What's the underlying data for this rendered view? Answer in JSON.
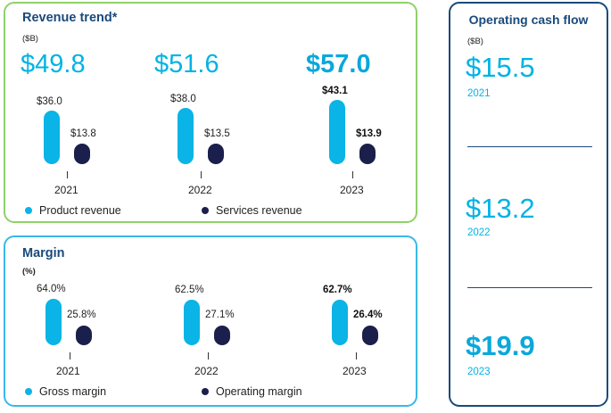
{
  "colors": {
    "primary_series": "#0ab4e6",
    "secondary_series": "#1b1f4b",
    "revenue_border": "#8fd16a",
    "margin_border": "#38b8e8",
    "cash_border": "#1a4a7a"
  },
  "chart_data": [
    {
      "type": "bar",
      "title": "Revenue trend*",
      "unit": "($B)",
      "categories": [
        "2021",
        "2022",
        "2023"
      ],
      "totals": [
        "$49.8",
        "$51.6",
        "$57.0"
      ],
      "series": [
        {
          "name": "Product revenue",
          "values": [
            36.0,
            38.0,
            43.1
          ],
          "labels": [
            "$36.0",
            "$38.0",
            "$43.1"
          ]
        },
        {
          "name": "Services revenue",
          "values": [
            13.8,
            13.5,
            13.9
          ],
          "labels": [
            "$13.8",
            "$13.5",
            "$13.9"
          ]
        }
      ],
      "highlight_index": 2
    },
    {
      "type": "bar",
      "title": "Margin",
      "unit": "(%)",
      "categories": [
        "2021",
        "2022",
        "2023"
      ],
      "series": [
        {
          "name": "Gross margin",
          "values": [
            64.0,
            62.5,
            62.7
          ],
          "labels": [
            "64.0%",
            "62.5%",
            "62.7%"
          ]
        },
        {
          "name": "Operating margin",
          "values": [
            25.8,
            27.1,
            26.4
          ],
          "labels": [
            "25.8%",
            "27.1%",
            "26.4%"
          ]
        }
      ],
      "highlight_index": 2
    },
    {
      "type": "table",
      "title": "Operating cash flow",
      "unit": "($B)",
      "rows": [
        {
          "year": "2021",
          "value": 15.5,
          "label": "$15.5"
        },
        {
          "year": "2022",
          "value": 13.2,
          "label": "$13.2"
        },
        {
          "year": "2023",
          "value": 19.9,
          "label": "$19.9"
        }
      ],
      "highlight_index": 2
    }
  ]
}
